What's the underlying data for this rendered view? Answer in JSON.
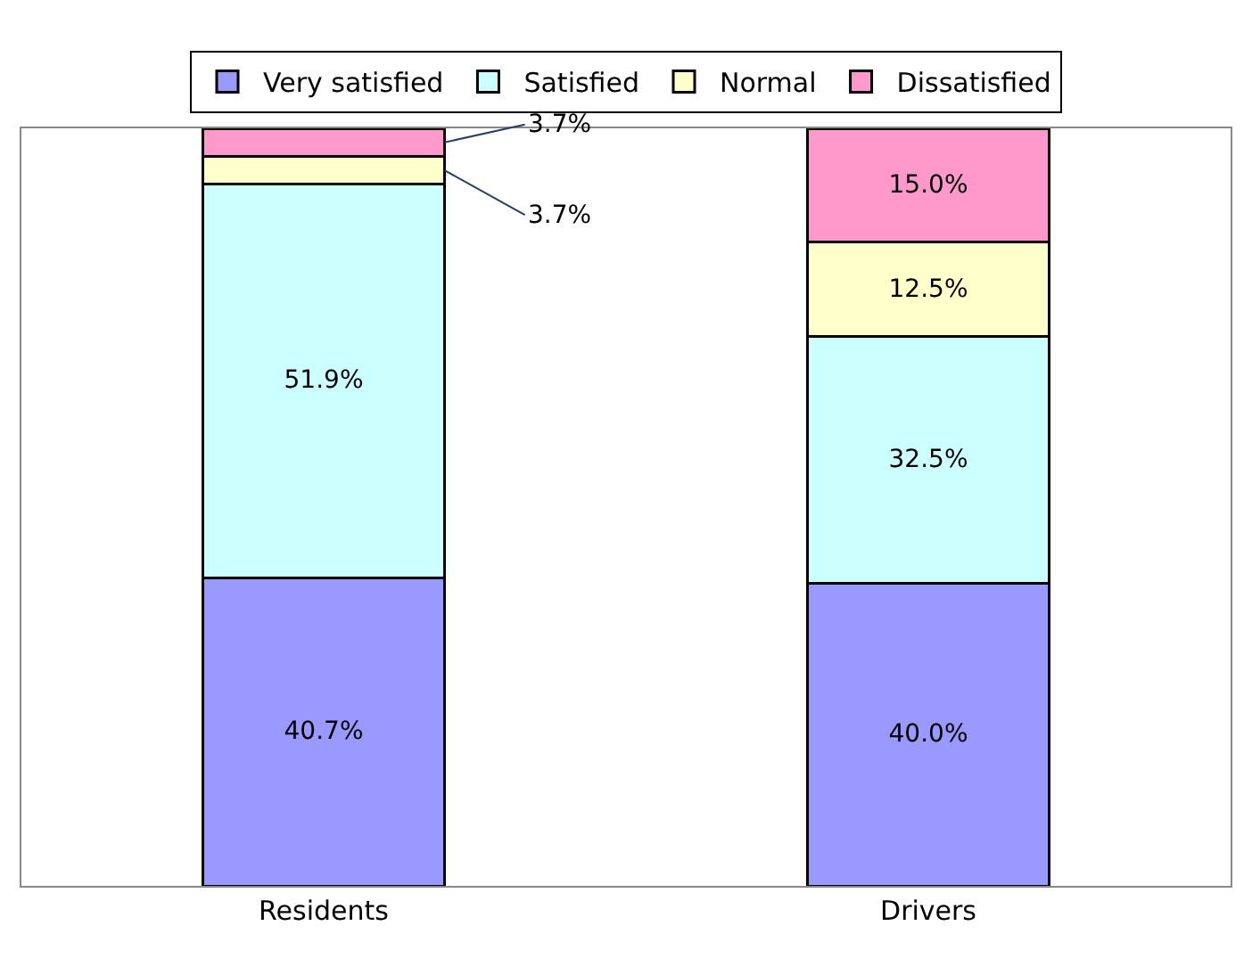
{
  "chart_data": {
    "type": "bar",
    "stacked": true,
    "categories": [
      "Residents",
      "Drivers"
    ],
    "series": [
      {
        "name": "Very satisfied",
        "color": "#9999ff",
        "values": [
          40.7,
          40.0
        ],
        "value_labels": [
          "40.7%",
          "40.0%"
        ]
      },
      {
        "name": "Satisfied",
        "color": "#ccffff",
        "values": [
          51.9,
          32.5
        ],
        "value_labels": [
          "51.9%",
          "32.5%"
        ]
      },
      {
        "name": "Normal",
        "color": "#ffffcc",
        "values": [
          3.7,
          12.5
        ],
        "value_labels": [
          "3.7%",
          "12.5%"
        ]
      },
      {
        "name": "Dissatisfied",
        "color": "#ff99cc",
        "values": [
          3.7,
          15.0
        ],
        "value_labels": [
          "3.7%",
          "15.0%"
        ]
      }
    ],
    "legend": "top"
  }
}
